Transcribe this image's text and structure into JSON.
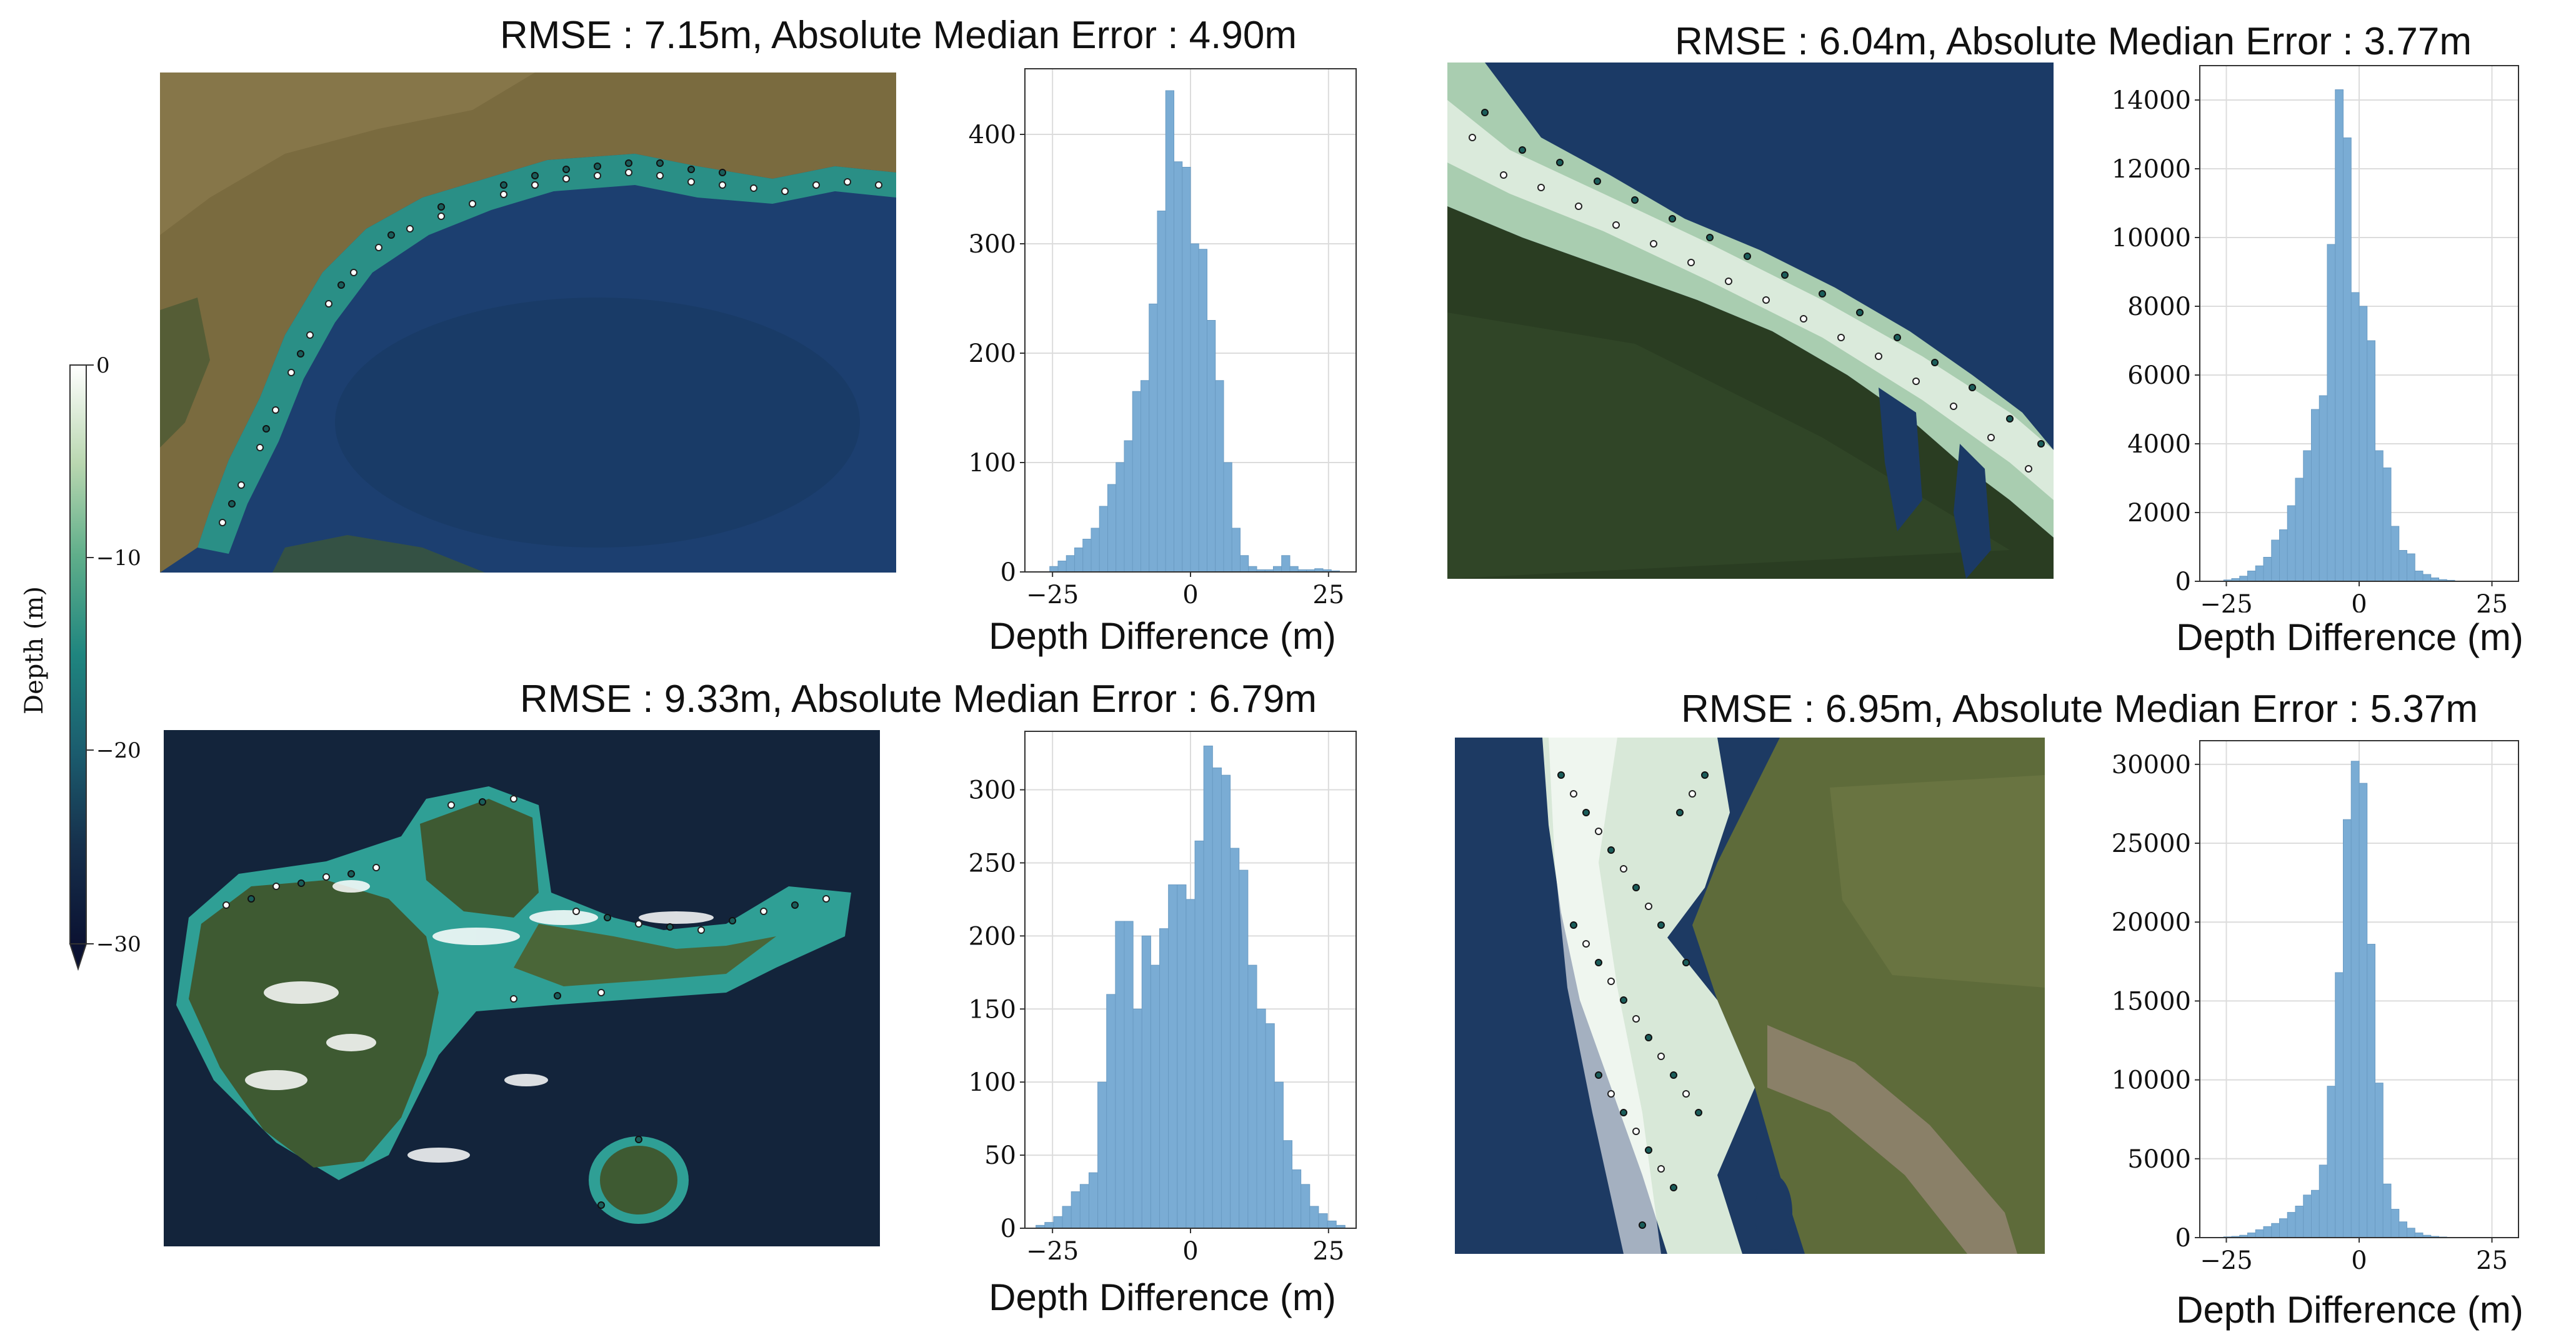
{
  "colorbar": {
    "label": "Depth (m)",
    "ticks": [
      "0",
      "−10",
      "−20",
      "−30"
    ],
    "gradient": [
      "#ffffff",
      "#b9d7b0",
      "#5fae8a",
      "#1f857f",
      "#1b5c6e",
      "#16304c",
      "#0b1232"
    ]
  },
  "panels": [
    {
      "id": "p1",
      "title": "RMSE : 7.15m, Absolute Median Error : 4.90m",
      "xlabel": "Depth Difference (m)",
      "map": {
        "sea": "#1c3f70",
        "land": "#7a6b3f",
        "shelf": "#2a8f86"
      }
    },
    {
      "id": "p2",
      "title": "RMSE : 6.04m, Absolute Median Error : 3.77m",
      "xlabel": "Depth Difference (m)",
      "map": {
        "sea": "#1b3a66",
        "land": "#2a3d22",
        "shelf": "#a9cdb0"
      }
    },
    {
      "id": "p3",
      "title": "RMSE : 9.33m, Absolute Median Error : 6.79m",
      "xlabel": "Depth Difference (m)",
      "map": {
        "sea": "#13243b",
        "land": "#3e5a32",
        "shelf": "#2f9f95"
      }
    },
    {
      "id": "p4",
      "title": "RMSE : 6.95m, Absolute Median Error : 5.37m",
      "xlabel": "Depth Difference (m)",
      "map": {
        "sea": "#1d3a63",
        "land": "#5e6b3a",
        "shelf": "#d8e8d8"
      }
    }
  ],
  "chart_data": [
    {
      "type": "bar",
      "panel": "p1",
      "title": "RMSE : 7.15m, Absolute Median Error : 4.90m",
      "xlabel": "Depth Difference (m)",
      "ylabel": "",
      "xlim": [
        -30,
        30
      ],
      "ylim": [
        0,
        460
      ],
      "xticks": [
        -25,
        0,
        25
      ],
      "xtick_labels": [
        "−25",
        "0",
        "25"
      ],
      "yticks": [
        0,
        100,
        200,
        300,
        400
      ],
      "bin_width": 1.5,
      "bin_start": -25.5,
      "values": [
        5,
        10,
        15,
        22,
        30,
        40,
        60,
        80,
        100,
        120,
        165,
        175,
        245,
        330,
        440,
        375,
        370,
        300,
        295,
        230,
        175,
        100,
        40,
        15,
        5,
        2,
        2,
        5,
        15,
        5,
        2,
        2,
        3,
        2,
        1
      ],
      "bar_color": "#7aacd4"
    },
    {
      "type": "bar",
      "panel": "p2",
      "title": "RMSE : 6.04m, Absolute Median Error : 3.77m",
      "xlabel": "Depth Difference (m)",
      "ylabel": "",
      "xlim": [
        -30,
        30
      ],
      "ylim": [
        0,
        15000
      ],
      "xticks": [
        -25,
        0,
        25
      ],
      "xtick_labels": [
        "−25",
        "0",
        "25"
      ],
      "yticks": [
        0,
        2000,
        4000,
        6000,
        8000,
        10000,
        12000,
        14000
      ],
      "bin_width": 1.5,
      "bin_start": -25.5,
      "values": [
        40,
        80,
        150,
        300,
        450,
        700,
        1200,
        1500,
        2200,
        3000,
        3800,
        5000,
        5400,
        9800,
        14300,
        12900,
        8400,
        8000,
        7000,
        3800,
        3300,
        1600,
        900,
        800,
        300,
        200,
        100,
        50,
        30
      ],
      "bar_color": "#7aacd4"
    },
    {
      "type": "bar",
      "panel": "p3",
      "title": "RMSE : 9.33m, Absolute Median Error : 6.79m",
      "xlabel": "Depth Difference (m)",
      "ylabel": "",
      "xlim": [
        -30,
        30
      ],
      "ylim": [
        0,
        340
      ],
      "xticks": [
        -25,
        0,
        25
      ],
      "xtick_labels": [
        "−25",
        "0",
        "25"
      ],
      "yticks": [
        0,
        50,
        100,
        150,
        200,
        250,
        300
      ],
      "bin_width": 1.6,
      "bin_start": -28,
      "values": [
        2,
        4,
        8,
        15,
        25,
        30,
        38,
        100,
        160,
        210,
        210,
        150,
        200,
        180,
        205,
        235,
        235,
        225,
        265,
        330,
        315,
        310,
        260,
        245,
        180,
        150,
        140,
        100,
        60,
        40,
        30,
        15,
        10,
        5,
        2
      ],
      "bar_color": "#7aacd4"
    },
    {
      "type": "bar",
      "panel": "p4",
      "title": "RMSE : 6.95m, Absolute Median Error : 5.37m",
      "xlabel": "Depth Difference (m)",
      "ylabel": "",
      "xlim": [
        -30,
        30
      ],
      "ylim": [
        0,
        31500
      ],
      "xticks": [
        -25,
        0,
        25
      ],
      "xtick_labels": [
        "−25",
        "0",
        "25"
      ],
      "yticks": [
        0,
        5000,
        10000,
        15000,
        20000,
        25000,
        30000
      ],
      "bin_width": 1.5,
      "bin_start": -25.5,
      "values": [
        50,
        80,
        150,
        300,
        500,
        700,
        900,
        1200,
        1600,
        2000,
        2700,
        3000,
        4600,
        9600,
        16800,
        26500,
        30200,
        28800,
        18600,
        9800,
        3400,
        1800,
        1000,
        600,
        300,
        150,
        80,
        40,
        20,
        10
      ],
      "bar_color": "#7aacd4"
    }
  ]
}
